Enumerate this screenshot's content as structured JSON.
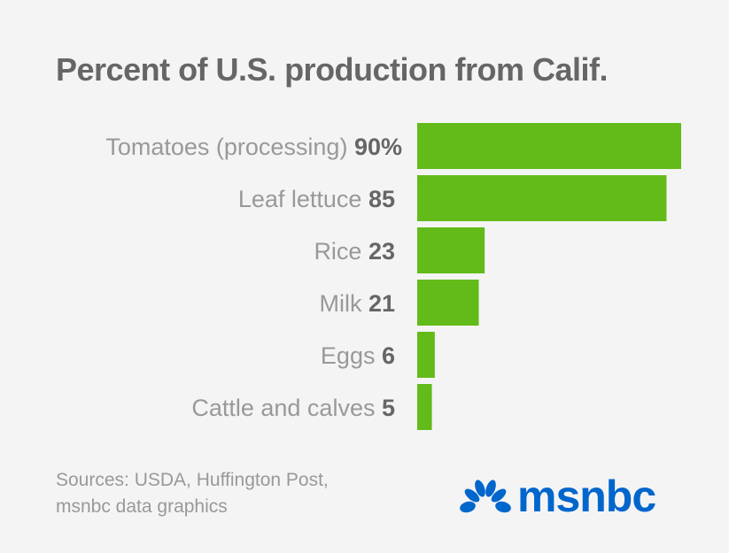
{
  "chart_data": {
    "type": "bar",
    "orientation": "horizontal",
    "title": "Percent of U.S. production from Calif.",
    "categories": [
      "Tomatoes (processing)",
      "Leaf lettuce",
      "Rice",
      "Milk",
      "Eggs",
      "Cattle and calves"
    ],
    "values": [
      90,
      85,
      23,
      21,
      6,
      5
    ],
    "value_labels": [
      "90%",
      "85",
      "23",
      "21",
      "6",
      "5"
    ],
    "xlim": [
      0,
      100
    ],
    "grid": false,
    "bar_color": "#62bb19"
  },
  "source": {
    "line1": "Sources: USDA, Huffington Post,",
    "line2": "msnbc data graphics"
  },
  "logo": {
    "text": "msnbc",
    "color": "#0066cc"
  }
}
